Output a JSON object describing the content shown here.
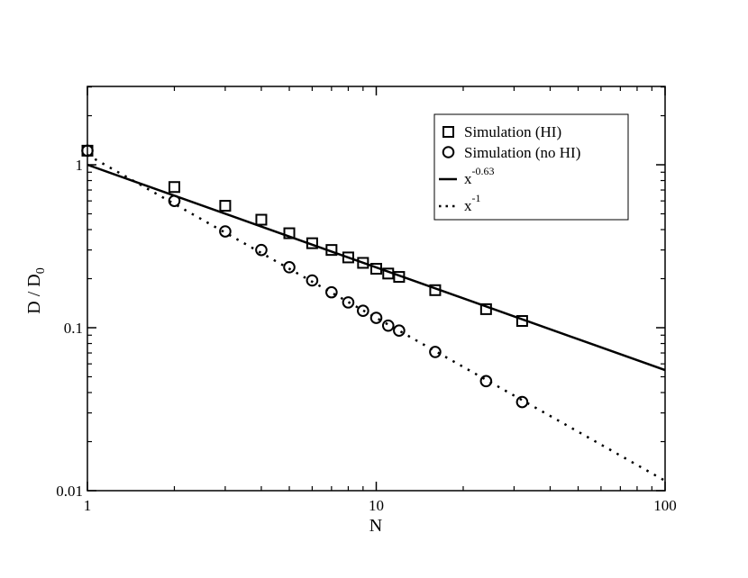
{
  "chart_data": {
    "type": "scatter",
    "title": "",
    "xlabel": "N",
    "ylabel_main": "D / D",
    "ylabel_sub": "0",
    "xscale": "log",
    "yscale": "log",
    "xlim": [
      1,
      100
    ],
    "ylim": [
      0.01,
      3
    ],
    "grid": false,
    "legend_position": "top-right",
    "x_ticks": [
      {
        "value": 1,
        "label": "1"
      },
      {
        "value": 10,
        "label": "10"
      },
      {
        "value": 100,
        "label": "100"
      }
    ],
    "y_ticks": [
      {
        "value": 0.01,
        "label": "0.01"
      },
      {
        "value": 0.1,
        "label": "0.1"
      },
      {
        "value": 1,
        "label": "1"
      }
    ],
    "series": [
      {
        "name": "Simulation (HI)",
        "marker": "square",
        "x": [
          1,
          2,
          3,
          4,
          5,
          6,
          7,
          8,
          9,
          10,
          11,
          12,
          16,
          24,
          32
        ],
        "y": [
          1.22,
          0.73,
          0.56,
          0.46,
          0.38,
          0.33,
          0.3,
          0.27,
          0.25,
          0.23,
          0.215,
          0.205,
          0.17,
          0.13,
          0.11
        ]
      },
      {
        "name": "Simulation (no HI)",
        "marker": "circle",
        "x": [
          1,
          2,
          3,
          4,
          5,
          6,
          7,
          8,
          9,
          10,
          11,
          12,
          16,
          24,
          32
        ],
        "y": [
          1.22,
          0.6,
          0.39,
          0.3,
          0.235,
          0.195,
          0.165,
          0.143,
          0.127,
          0.115,
          0.103,
          0.096,
          0.071,
          0.047,
          0.035
        ]
      }
    ],
    "fits": [
      {
        "label_base": "x",
        "label_exp": "-0.63",
        "style": "solid",
        "exponent": -0.63,
        "coefficient": 1.0
      },
      {
        "label_base": "x",
        "label_exp": "-1",
        "style": "dotted",
        "exponent": -1,
        "coefficient": 1.15
      }
    ]
  }
}
